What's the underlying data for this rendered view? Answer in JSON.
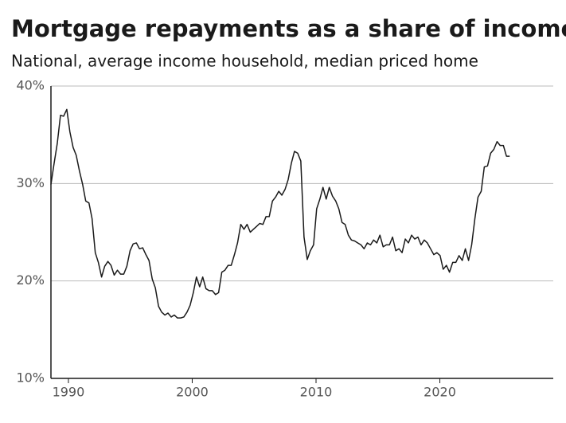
{
  "chart_data": {
    "type": "line",
    "title": "Mortgage repayments as a share of income",
    "subtitle": "National, average income household, median priced home",
    "x": [
      1988.59,
      1988.85,
      1989.1,
      1989.36,
      1989.61,
      1989.87,
      1990.12,
      1990.38,
      1990.63,
      1990.89,
      1991.15,
      1991.4,
      1991.66,
      1991.91,
      1992.17,
      1992.42,
      1992.68,
      1992.93,
      1993.19,
      1993.44,
      1993.7,
      1993.96,
      1994.21,
      1994.47,
      1994.72,
      1994.98,
      1995.23,
      1995.49,
      1995.74,
      1996.0,
      1996.26,
      1996.51,
      1996.77,
      1997.02,
      1997.28,
      1997.53,
      1997.79,
      1998.04,
      1998.3,
      1998.55,
      1998.81,
      1999.07,
      1999.32,
      1999.58,
      1999.83,
      2000.09,
      2000.34,
      2000.6,
      2000.85,
      2001.11,
      2001.37,
      2001.62,
      2001.88,
      2002.13,
      2002.39,
      2002.64,
      2002.9,
      2003.15,
      2003.41,
      2003.66,
      2003.92,
      2004.18,
      2004.43,
      2004.69,
      2004.94,
      2005.2,
      2005.45,
      2005.71,
      2005.96,
      2006.22,
      2006.48,
      2006.73,
      2006.99,
      2007.24,
      2007.5,
      2007.75,
      2008.01,
      2008.26,
      2008.52,
      2008.77,
      2009.03,
      2009.29,
      2009.54,
      2009.8,
      2010.05,
      2010.31,
      2010.56,
      2010.82,
      2011.07,
      2011.33,
      2011.59,
      2011.84,
      2012.1,
      2012.35,
      2012.61,
      2012.86,
      2013.12,
      2013.37,
      2013.63,
      2013.88,
      2014.14,
      2014.4,
      2014.65,
      2014.91,
      2015.16,
      2015.42,
      2015.67,
      2015.93,
      2016.18,
      2016.44,
      2016.7,
      2016.95,
      2017.21,
      2017.46,
      2017.72,
      2017.97,
      2018.23,
      2018.48,
      2018.74,
      2018.99,
      2019.25,
      2019.51,
      2019.76,
      2020.02,
      2020.27,
      2020.53,
      2020.78,
      2021.04,
      2021.29,
      2021.55,
      2021.81,
      2022.06,
      2022.32,
      2022.57,
      2022.83,
      2023.08,
      2023.34,
      2023.59,
      2023.85,
      2024.1,
      2024.36,
      2024.62,
      2024.87,
      2025.13,
      2025.38,
      2025.64
    ],
    "values": [
      29.9,
      32.1,
      34.1,
      37.0,
      36.9,
      37.6,
      35.3,
      33.7,
      32.9,
      31.3,
      29.9,
      28.2,
      28.0,
      26.4,
      22.9,
      21.9,
      20.4,
      21.5,
      22.0,
      21.6,
      20.6,
      21.1,
      20.7,
      20.7,
      21.5,
      23.1,
      23.8,
      23.9,
      23.3,
      23.4,
      22.7,
      22.1,
      20.2,
      19.3,
      17.4,
      16.8,
      16.5,
      16.7,
      16.3,
      16.5,
      16.2,
      16.2,
      16.3,
      16.8,
      17.5,
      18.8,
      20.4,
      19.4,
      20.4,
      19.2,
      19.0,
      19.0,
      18.6,
      18.8,
      20.9,
      21.1,
      21.6,
      21.6,
      22.7,
      23.9,
      25.8,
      25.3,
      25.8,
      25.0,
      25.3,
      25.6,
      25.9,
      25.8,
      26.6,
      26.6,
      28.2,
      28.6,
      29.2,
      28.8,
      29.4,
      30.4,
      32.1,
      33.3,
      33.1,
      32.3,
      24.5,
      22.2,
      23.1,
      23.7,
      27.4,
      28.4,
      29.6,
      28.4,
      29.6,
      28.7,
      28.2,
      27.4,
      26.0,
      25.8,
      24.7,
      24.2,
      24.1,
      23.9,
      23.7,
      23.3,
      23.9,
      23.7,
      24.2,
      23.9,
      24.7,
      23.5,
      23.7,
      23.7,
      24.5,
      23.1,
      23.3,
      22.9,
      24.3,
      23.9,
      24.7,
      24.3,
      24.5,
      23.7,
      24.2,
      23.9,
      23.3,
      22.7,
      22.9,
      22.6,
      21.2,
      21.6,
      20.9,
      21.9,
      21.9,
      22.6,
      22.1,
      23.3,
      22.1,
      23.7,
      26.4,
      28.6,
      29.2,
      31.7,
      31.8,
      33.1,
      33.5,
      34.3,
      33.9,
      33.9,
      32.8,
      32.8
    ],
    "color": "#1a1a1a",
    "xlim": [
      1988.59,
      2029.16
    ],
    "xticks": [
      1990,
      2000,
      2010,
      2020
    ],
    "ylim": [
      10,
      40
    ],
    "yticks": [
      {
        "value": 10,
        "label": "10%"
      },
      {
        "value": 20,
        "label": "20%"
      },
      {
        "value": 30,
        "label": "30%"
      },
      {
        "value": 40,
        "label": "40%"
      }
    ],
    "grid": true
  }
}
